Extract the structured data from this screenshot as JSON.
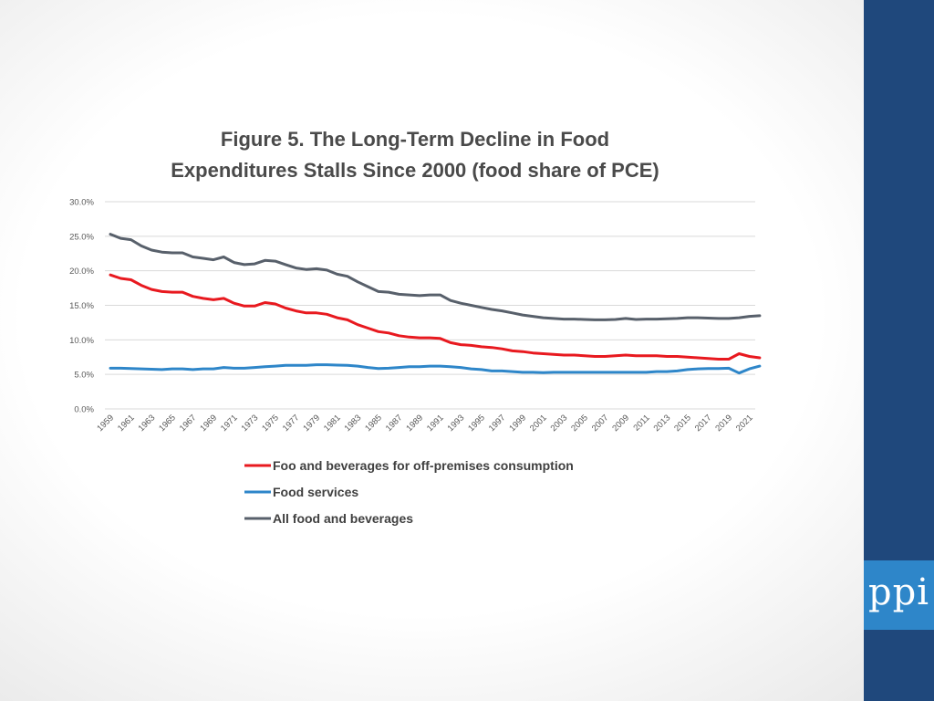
{
  "slide": {
    "logo_text": "ppi",
    "colors": {
      "side_band": "#1f487c",
      "logo_box": "#2e86c9"
    }
  },
  "chart_data": {
    "type": "line",
    "title_line1": "Figure 5. The Long-Term Decline in Food",
    "title_line2": "Expenditures Stalls Since 2000 (food share of PCE)",
    "xlabel": "",
    "ylabel": "",
    "ylim": [
      0,
      30
    ],
    "y_ticks": [
      0,
      5,
      10,
      15,
      20,
      25,
      30
    ],
    "y_tick_labels": [
      "0.0%",
      "5.0%",
      "10.0%",
      "15.0%",
      "20.0%",
      "25.0%",
      "30.0%"
    ],
    "x": [
      1959,
      1960,
      1961,
      1962,
      1963,
      1964,
      1965,
      1966,
      1967,
      1968,
      1969,
      1970,
      1971,
      1972,
      1973,
      1974,
      1975,
      1976,
      1977,
      1978,
      1979,
      1980,
      1981,
      1982,
      1983,
      1984,
      1985,
      1986,
      1987,
      1988,
      1989,
      1990,
      1991,
      1992,
      1993,
      1994,
      1995,
      1996,
      1997,
      1998,
      1999,
      2000,
      2001,
      2002,
      2003,
      2004,
      2005,
      2006,
      2007,
      2008,
      2009,
      2010,
      2011,
      2012,
      2013,
      2014,
      2015,
      2016,
      2017,
      2018,
      2019,
      2020,
      2021,
      2022
    ],
    "x_tick_labels": [
      "1959",
      "1961",
      "1963",
      "1965",
      "1967",
      "1969",
      "1971",
      "1973",
      "1975",
      "1977",
      "1979",
      "1981",
      "1983",
      "1985",
      "1987",
      "1989",
      "1991",
      "1993",
      "1995",
      "1997",
      "1999",
      "2001",
      "2003",
      "2005",
      "2007",
      "2009",
      "2011",
      "2013",
      "2015",
      "2017",
      "2019",
      "2021"
    ],
    "grid": true,
    "legend_position": "bottom",
    "series": [
      {
        "name": "Foo and beverages for off-premises consumption",
        "color": "#e8191f",
        "values": [
          19.4,
          18.9,
          18.7,
          17.9,
          17.3,
          17.0,
          16.9,
          16.9,
          16.3,
          16.0,
          15.8,
          16.0,
          15.3,
          14.9,
          14.9,
          15.4,
          15.2,
          14.6,
          14.2,
          13.9,
          13.9,
          13.7,
          13.2,
          12.9,
          12.2,
          11.7,
          11.2,
          11.0,
          10.6,
          10.4,
          10.3,
          10.3,
          10.2,
          9.6,
          9.3,
          9.2,
          9.0,
          8.9,
          8.7,
          8.4,
          8.3,
          8.1,
          8.0,
          7.9,
          7.8,
          7.8,
          7.7,
          7.6,
          7.6,
          7.7,
          7.8,
          7.7,
          7.7,
          7.7,
          7.6,
          7.6,
          7.5,
          7.4,
          7.3,
          7.2,
          7.2,
          8.0,
          7.6,
          7.4
        ]
      },
      {
        "name": "Food services",
        "color": "#2e86c9",
        "values": [
          5.9,
          5.9,
          5.85,
          5.8,
          5.75,
          5.7,
          5.8,
          5.8,
          5.7,
          5.8,
          5.8,
          6.0,
          5.9,
          5.9,
          6.0,
          6.1,
          6.2,
          6.3,
          6.3,
          6.3,
          6.4,
          6.4,
          6.35,
          6.3,
          6.2,
          6.0,
          5.85,
          5.9,
          6.0,
          6.1,
          6.1,
          6.2,
          6.2,
          6.1,
          6.0,
          5.8,
          5.7,
          5.5,
          5.5,
          5.4,
          5.3,
          5.3,
          5.25,
          5.3,
          5.3,
          5.3,
          5.3,
          5.3,
          5.3,
          5.3,
          5.3,
          5.3,
          5.3,
          5.4,
          5.4,
          5.5,
          5.7,
          5.8,
          5.85,
          5.85,
          5.9,
          5.2,
          5.8,
          6.2
        ]
      },
      {
        "name": "All food and beverages",
        "color": "#58606b",
        "values": [
          25.3,
          24.7,
          24.5,
          23.6,
          23.0,
          22.7,
          22.6,
          22.6,
          22.0,
          21.8,
          21.6,
          22.0,
          21.2,
          20.9,
          21.0,
          21.5,
          21.4,
          20.9,
          20.4,
          20.2,
          20.3,
          20.1,
          19.5,
          19.2,
          18.4,
          17.7,
          17.0,
          16.9,
          16.6,
          16.5,
          16.4,
          16.5,
          16.5,
          15.7,
          15.3,
          15.0,
          14.7,
          14.4,
          14.2,
          13.9,
          13.6,
          13.4,
          13.2,
          13.1,
          13.0,
          13.0,
          12.95,
          12.9,
          12.9,
          12.95,
          13.1,
          12.95,
          13.0,
          13.0,
          13.05,
          13.1,
          13.2,
          13.2,
          13.15,
          13.1,
          13.1,
          13.2,
          13.4,
          13.5
        ]
      }
    ]
  }
}
